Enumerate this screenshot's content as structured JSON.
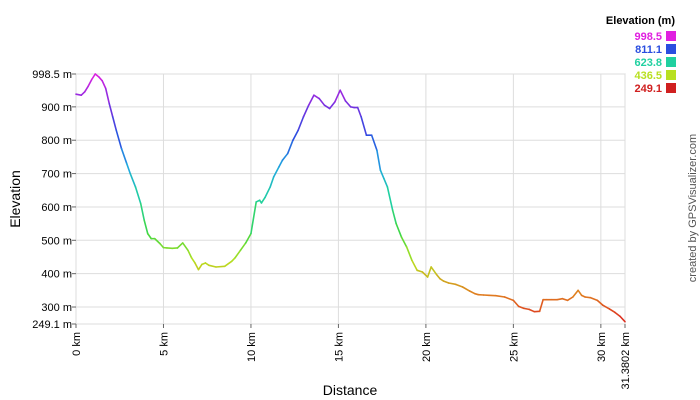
{
  "chart_data": {
    "type": "line",
    "xlabel": "Distance",
    "ylabel": "Elevation",
    "xlim": [
      0,
      31.3802
    ],
    "ylim": [
      249.1,
      998.5
    ],
    "x_ticks": [
      {
        "value": 0,
        "label": "0 km"
      },
      {
        "value": 5,
        "label": "5 km"
      },
      {
        "value": 10,
        "label": "10 km"
      },
      {
        "value": 15,
        "label": "15 km"
      },
      {
        "value": 20,
        "label": "20 km"
      },
      {
        "value": 25,
        "label": "25 km"
      },
      {
        "value": 30,
        "label": "30 km"
      },
      {
        "value": 31.3802,
        "label": "31.3802 km"
      }
    ],
    "y_ticks": [
      {
        "value": 249.1,
        "label": "249.1 m"
      },
      {
        "value": 300,
        "label": "300 m"
      },
      {
        "value": 400,
        "label": "400 m"
      },
      {
        "value": 500,
        "label": "500 m"
      },
      {
        "value": 600,
        "label": "600 m"
      },
      {
        "value": 700,
        "label": "700 m"
      },
      {
        "value": 800,
        "label": "800 m"
      },
      {
        "value": 900,
        "label": "900 m"
      },
      {
        "value": 998.5,
        "label": "998.5 m"
      }
    ],
    "legend": {
      "title": "Elevation (m)",
      "placement": "top-right",
      "entries": [
        {
          "label": "998.5",
          "color": "#e020e0"
        },
        {
          "label": "811.1",
          "color": "#2a4ee0"
        },
        {
          "label": "623.8",
          "color": "#20d0a0"
        },
        {
          "label": "436.5",
          "color": "#b8e020"
        },
        {
          "label": "249.1",
          "color": "#d02020"
        }
      ]
    },
    "color_scale": {
      "stops": [
        {
          "value": 249.1,
          "color": "#dd2020"
        },
        {
          "value": 340,
          "color": "#e08020"
        },
        {
          "value": 436.5,
          "color": "#b8e020"
        },
        {
          "value": 520,
          "color": "#40d840"
        },
        {
          "value": 623.8,
          "color": "#20d0a0"
        },
        {
          "value": 720,
          "color": "#20a8e0"
        },
        {
          "value": 811.1,
          "color": "#2a4ee0"
        },
        {
          "value": 905,
          "color": "#7830e0"
        },
        {
          "value": 998.5,
          "color": "#e020e0"
        }
      ]
    },
    "credit": "created by GPSVisualizer.com",
    "series": [
      {
        "x": [
          0,
          0.3,
          0.5,
          0.7,
          0.9,
          1.1,
          1.3,
          1.5,
          1.7,
          1.9,
          2.1,
          2.3,
          2.6,
          2.9,
          3.1,
          3.4,
          3.7,
          3.9,
          4.1,
          4.3,
          4.5,
          4.8,
          5.0,
          5.2,
          5.5,
          5.8,
          6.1,
          6.4,
          6.6,
          6.8,
          7.0,
          7.2,
          7.4,
          7.6,
          8.0,
          8.5,
          8.9,
          9.1,
          9.4,
          9.7,
          10.0,
          10.3,
          10.5,
          10.6,
          10.8,
          11.1,
          11.3,
          11.6,
          11.8,
          12.1,
          12.4,
          12.7,
          13.0,
          13.3,
          13.6,
          13.9,
          14.2,
          14.5,
          14.8,
          15.1,
          15.4,
          15.7,
          15.9,
          16.1,
          16.3,
          16.6,
          16.9,
          17.2,
          17.4,
          17.6,
          17.8,
          18.1,
          18.3,
          18.6,
          18.9,
          19.2,
          19.5,
          19.8,
          20.1,
          20.3,
          20.6,
          20.8,
          21.0,
          21.3,
          21.7,
          22.1,
          22.5,
          22.8,
          23.0,
          23.3,
          23.6,
          24.0,
          24.5,
          25.0,
          25.3,
          25.6,
          25.9,
          26.2,
          26.5,
          26.7,
          26.9,
          27.2,
          27.5,
          27.8,
          28.1,
          28.4,
          28.7,
          28.9,
          29.1,
          29.4,
          29.8,
          30.1,
          30.5,
          30.8,
          31.1,
          31.3802
        ],
        "y": [
          938,
          935,
          945,
          962,
          982,
          998.5,
          990,
          978,
          955,
          910,
          870,
          830,
          775,
          730,
          700,
          660,
          610,
          560,
          520,
          505,
          505,
          490,
          478,
          477,
          476,
          477,
          492,
          470,
          448,
          432,
          412,
          428,
          432,
          425,
          420,
          422,
          437,
          448,
          470,
          492,
          520,
          615,
          620,
          612,
          628,
          660,
          690,
          720,
          740,
          760,
          800,
          830,
          870,
          905,
          935,
          925,
          905,
          895,
          915,
          950,
          918,
          900,
          898,
          898,
          870,
          815,
          815,
          770,
          710,
          685,
          660,
          590,
          550,
          510,
          480,
          440,
          410,
          405,
          390,
          420,
          398,
          385,
          378,
          372,
          368,
          360,
          348,
          340,
          337,
          336,
          335,
          334,
          330,
          320,
          302,
          296,
          293,
          286,
          287,
          322,
          322,
          322,
          322,
          325,
          320,
          330,
          350,
          335,
          330,
          328,
          320,
          306,
          294,
          284,
          272,
          256
        ]
      }
    ]
  }
}
